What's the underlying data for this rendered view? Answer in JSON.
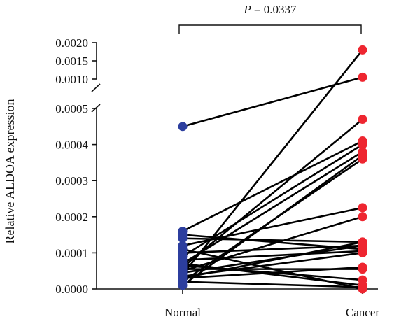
{
  "chart_data": {
    "type": "scatter",
    "subtype": "paired-dot (before-after) with broken y-axis",
    "ylabel": "Relative ALDOA expression",
    "categories": [
      "Normal",
      "Cancer"
    ],
    "annotation": {
      "label": "P = 0.0337",
      "p_prefix": "P",
      "p_value": "= 0.0337"
    },
    "y_axis": {
      "broken": true,
      "lower_segment": {
        "range": [
          0.0,
          0.0005
        ],
        "ticks": [
          "0.0000",
          "0.0001",
          "0.0002",
          "0.0003",
          "0.0004",
          "0.0005"
        ]
      },
      "upper_segment": {
        "range": [
          0.001,
          0.002
        ],
        "ticks": [
          "0.0010",
          "0.0015",
          "0.0020"
        ]
      }
    },
    "colors": {
      "normal": "#2c3e9e",
      "cancer": "#ee2630",
      "line": "#000000"
    },
    "pairs": [
      {
        "normal": 0.00045,
        "cancer": 0.00105
      },
      {
        "normal": 4e-05,
        "cancer": 0.0018
      },
      {
        "normal": 6e-05,
        "cancer": 0.00047
      },
      {
        "normal": 0.00016,
        "cancer": 0.00041
      },
      {
        "normal": 9e-05,
        "cancer": 0.0004
      },
      {
        "normal": 7e-05,
        "cancer": 0.00038
      },
      {
        "normal": 1e-05,
        "cancer": 0.00037
      },
      {
        "normal": 2e-05,
        "cancer": 0.00036
      },
      {
        "normal": 0.00012,
        "cancer": 0.000225
      },
      {
        "normal": 5e-05,
        "cancer": 0.0002
      },
      {
        "normal": 0.00014,
        "cancer": 0.00013
      },
      {
        "normal": 0.00015,
        "cancer": 0.00011
      },
      {
        "normal": 0.0001,
        "cancer": 0.00012
      },
      {
        "normal": 8e-05,
        "cancer": 0.000105
      },
      {
        "normal": 3.5e-05,
        "cancer": 0.0001
      },
      {
        "normal": 3e-05,
        "cancer": 6e-05
      },
      {
        "normal": 5.5e-05,
        "cancer": 5.5e-05
      },
      {
        "normal": 6.5e-05,
        "cancer": 2.5e-05
      },
      {
        "normal": 7e-05,
        "cancer": 1e-05
      },
      {
        "normal": 2e-05,
        "cancer": 5e-06
      },
      {
        "normal": 0.00011,
        "cancer": 0.0
      },
      {
        "normal": 4.5e-05,
        "cancer": 0.00012
      },
      {
        "normal": 3e-05,
        "cancer": 0.00013
      }
    ]
  }
}
